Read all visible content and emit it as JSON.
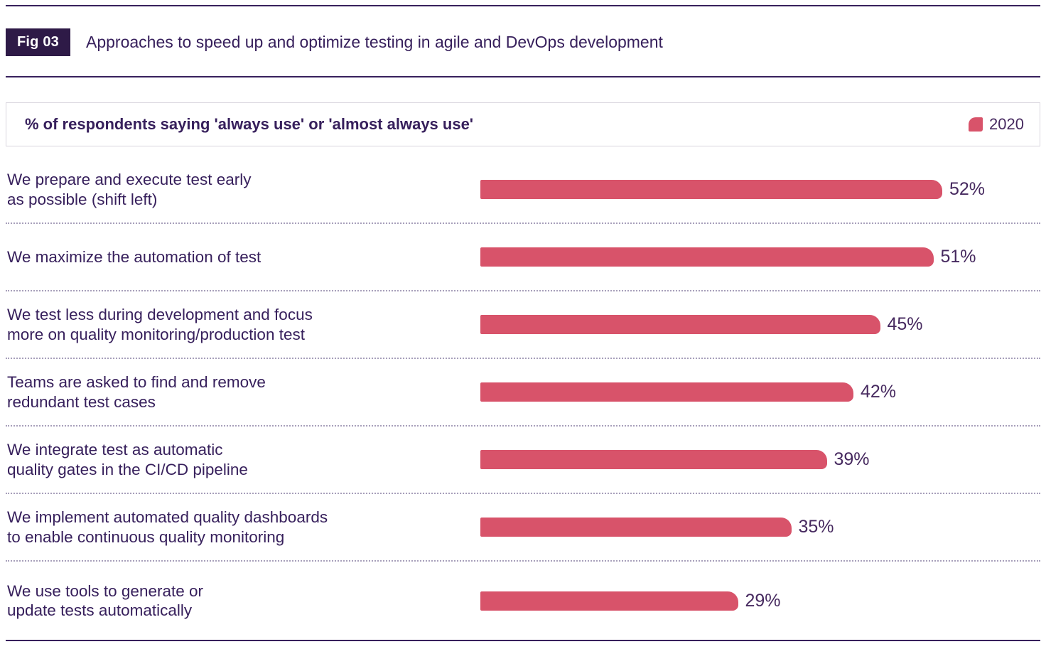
{
  "page": {
    "fig_label": "Fig 03",
    "title": "Approaches to speed up and optimize testing in agile and DevOps development"
  },
  "chart": {
    "subtitle": "% of respondents saying 'always use' or 'almost always use'",
    "legend": {
      "label": "2020"
    }
  },
  "colors": {
    "accent": "#d8536a",
    "badge": "#2e1a47",
    "text": "#37205c",
    "text2": "#46295f",
    "separator_dotted": "#a79fba",
    "box_border": "#d8d5de"
  },
  "chart_data": {
    "type": "bar",
    "orientation": "horizontal",
    "title": "Approaches to speed up and optimize testing in agile and DevOps development",
    "subtitle": "% of respondents saying 'always use' or 'almost always use'",
    "unit": "%",
    "categories": [
      "We prepare and execute test early\nas possible (shift left)",
      "We maximize the automation of test",
      "We test less during development and focus\nmore on quality monitoring/production test",
      "Teams are asked to find and remove\nredundant test cases",
      "We integrate test as automatic\nquality gates in the CI/CD pipeline",
      "We implement automated quality dashboards\nto enable continuous quality monitoring",
      "We use tools to generate or\nupdate tests automatically"
    ],
    "series": [
      {
        "name": "2020",
        "values": [
          52,
          51,
          45,
          42,
          39,
          35,
          29
        ]
      }
    ],
    "value_labels": [
      "52%",
      "51%",
      "45%",
      "42%",
      "39%",
      "35%",
      "29%"
    ],
    "xlim": [
      0,
      62.5
    ],
    "grid": false,
    "legend_position": "top-right",
    "bar_color": "#d8536a"
  }
}
